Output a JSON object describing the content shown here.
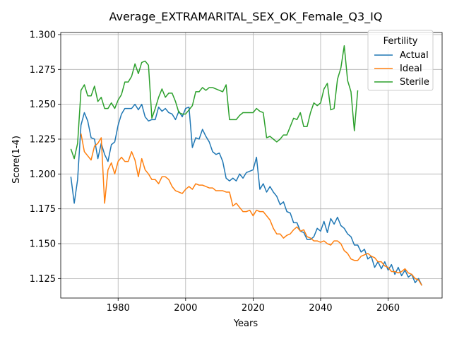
{
  "chart_data": {
    "type": "line",
    "title": "Average_EXTRAMARITAL_SEX_OK_Female_Q3_IQ",
    "xlabel": "Years",
    "ylabel": "Score(1-4)",
    "xlim": [
      1963,
      2076
    ],
    "ylim": [
      1.111,
      1.3015
    ],
    "xticks": [
      "1980",
      "2000",
      "2020",
      "2040",
      "2060"
    ],
    "yticks": [
      "1.125",
      "1.150",
      "1.175",
      "1.200",
      "1.225",
      "1.250",
      "1.275",
      "1.300"
    ],
    "grid": true,
    "legend": {
      "title": "Fertility",
      "position": "top-right"
    },
    "series": [
      {
        "name": "Actual",
        "color": "#1f77b4",
        "points": [
          [
            1966,
            1.198
          ],
          [
            1967,
            1.179
          ],
          [
            1968,
            1.196
          ],
          [
            1969,
            1.235
          ],
          [
            1970,
            1.244
          ],
          [
            1971,
            1.238
          ],
          [
            1972,
            1.226
          ],
          [
            1973,
            1.225
          ],
          [
            1974,
            1.211
          ],
          [
            1975,
            1.222
          ],
          [
            1976,
            1.214
          ],
          [
            1977,
            1.209
          ],
          [
            1978,
            1.221
          ],
          [
            1979,
            1.223
          ],
          [
            1980,
            1.235
          ],
          [
            1981,
            1.243
          ],
          [
            1982,
            1.247
          ],
          [
            1983,
            1.247
          ],
          [
            1984,
            1.247
          ],
          [
            1985,
            1.25
          ],
          [
            1986,
            1.246
          ],
          [
            1987,
            1.25
          ],
          [
            1988,
            1.241
          ],
          [
            1989,
            1.238
          ],
          [
            1990,
            1.239
          ],
          [
            1991,
            1.239
          ],
          [
            1992,
            1.248
          ],
          [
            1993,
            1.245
          ],
          [
            1994,
            1.247
          ],
          [
            1995,
            1.244
          ],
          [
            1996,
            1.243
          ],
          [
            1997,
            1.239
          ],
          [
            1998,
            1.245
          ],
          [
            1999,
            1.241
          ],
          [
            2000,
            1.247
          ],
          [
            2001,
            1.248
          ],
          [
            2002,
            1.219
          ],
          [
            2003,
            1.226
          ],
          [
            2004,
            1.225
          ],
          [
            2005,
            1.232
          ],
          [
            2006,
            1.227
          ],
          [
            2007,
            1.223
          ],
          [
            2008,
            1.216
          ],
          [
            2009,
            1.214
          ],
          [
            2010,
            1.215
          ],
          [
            2011,
            1.209
          ],
          [
            2012,
            1.197
          ],
          [
            2013,
            1.195
          ],
          [
            2014,
            1.197
          ],
          [
            2015,
            1.195
          ],
          [
            2016,
            1.2
          ],
          [
            2017,
            1.197
          ],
          [
            2018,
            1.201
          ],
          [
            2019,
            1.202
          ],
          [
            2020,
            1.203
          ],
          [
            2021,
            1.212
          ],
          [
            2022,
            1.189
          ],
          [
            2023,
            1.193
          ],
          [
            2024,
            1.187
          ],
          [
            2025,
            1.191
          ],
          [
            2026,
            1.187
          ],
          [
            2027,
            1.184
          ],
          [
            2028,
            1.178
          ],
          [
            2029,
            1.18
          ],
          [
            2030,
            1.173
          ],
          [
            2031,
            1.172
          ],
          [
            2032,
            1.165
          ],
          [
            2033,
            1.165
          ],
          [
            2034,
            1.159
          ],
          [
            2035,
            1.158
          ],
          [
            2036,
            1.153
          ],
          [
            2037,
            1.153
          ],
          [
            2038,
            1.155
          ],
          [
            2039,
            1.161
          ],
          [
            2040,
            1.159
          ],
          [
            2041,
            1.166
          ],
          [
            2042,
            1.158
          ],
          [
            2043,
            1.168
          ],
          [
            2044,
            1.164
          ],
          [
            2045,
            1.169
          ],
          [
            2046,
            1.163
          ],
          [
            2047,
            1.161
          ],
          [
            2048,
            1.157
          ],
          [
            2049,
            1.155
          ],
          [
            2050,
            1.149
          ],
          [
            2051,
            1.149
          ],
          [
            2052,
            1.144
          ],
          [
            2053,
            1.146
          ],
          [
            2054,
            1.139
          ],
          [
            2055,
            1.141
          ],
          [
            2056,
            1.133
          ],
          [
            2057,
            1.137
          ],
          [
            2058,
            1.132
          ],
          [
            2059,
            1.137
          ],
          [
            2060,
            1.131
          ],
          [
            2061,
            1.135
          ],
          [
            2062,
            1.128
          ],
          [
            2063,
            1.133
          ],
          [
            2064,
            1.127
          ],
          [
            2065,
            1.131
          ],
          [
            2066,
            1.126
          ],
          [
            2067,
            1.128
          ],
          [
            2068,
            1.122
          ],
          [
            2069,
            1.125
          ],
          [
            2070,
            1.12
          ]
        ]
      },
      {
        "name": "Ideal",
        "color": "#ff7f0e",
        "points": [
          [
            1969,
            1.229
          ],
          [
            1970,
            1.216
          ],
          [
            1971,
            1.213
          ],
          [
            1972,
            1.21
          ],
          [
            1973,
            1.22
          ],
          [
            1974,
            1.222
          ],
          [
            1975,
            1.226
          ],
          [
            1976,
            1.179
          ],
          [
            1977,
            1.203
          ],
          [
            1978,
            1.208
          ],
          [
            1979,
            1.2
          ],
          [
            1980,
            1.209
          ],
          [
            1981,
            1.212
          ],
          [
            1982,
            1.209
          ],
          [
            1983,
            1.209
          ],
          [
            1984,
            1.216
          ],
          [
            1985,
            1.21
          ],
          [
            1986,
            1.198
          ],
          [
            1987,
            1.211
          ],
          [
            1988,
            1.203
          ],
          [
            1989,
            1.2
          ],
          [
            1990,
            1.196
          ],
          [
            1991,
            1.196
          ],
          [
            1992,
            1.193
          ],
          [
            1993,
            1.198
          ],
          [
            1994,
            1.198
          ],
          [
            1995,
            1.196
          ],
          [
            1996,
            1.191
          ],
          [
            1997,
            1.188
          ],
          [
            1998,
            1.187
          ],
          [
            1999,
            1.186
          ],
          [
            2000,
            1.189
          ],
          [
            2001,
            1.191
          ],
          [
            2002,
            1.189
          ],
          [
            2003,
            1.193
          ],
          [
            2004,
            1.192
          ],
          [
            2005,
            1.192
          ],
          [
            2006,
            1.191
          ],
          [
            2007,
            1.19
          ],
          [
            2008,
            1.19
          ],
          [
            2009,
            1.188
          ],
          [
            2010,
            1.188
          ],
          [
            2011,
            1.188
          ],
          [
            2012,
            1.187
          ],
          [
            2013,
            1.187
          ],
          [
            2014,
            1.177
          ],
          [
            2015,
            1.179
          ],
          [
            2016,
            1.176
          ],
          [
            2017,
            1.173
          ],
          [
            2018,
            1.173
          ],
          [
            2019,
            1.174
          ],
          [
            2020,
            1.17
          ],
          [
            2021,
            1.174
          ],
          [
            2022,
            1.173
          ],
          [
            2023,
            1.173
          ],
          [
            2024,
            1.17
          ],
          [
            2025,
            1.167
          ],
          [
            2026,
            1.161
          ],
          [
            2027,
            1.157
          ],
          [
            2028,
            1.157
          ],
          [
            2029,
            1.154
          ],
          [
            2030,
            1.156
          ],
          [
            2031,
            1.157
          ],
          [
            2032,
            1.16
          ],
          [
            2033,
            1.162
          ],
          [
            2034,
            1.159
          ],
          [
            2035,
            1.16
          ],
          [
            2036,
            1.155
          ],
          [
            2037,
            1.154
          ],
          [
            2038,
            1.152
          ],
          [
            2039,
            1.152
          ],
          [
            2040,
            1.151
          ],
          [
            2041,
            1.152
          ],
          [
            2042,
            1.15
          ],
          [
            2043,
            1.149
          ],
          [
            2044,
            1.152
          ],
          [
            2045,
            1.152
          ],
          [
            2046,
            1.15
          ],
          [
            2047,
            1.145
          ],
          [
            2048,
            1.143
          ],
          [
            2049,
            1.139
          ],
          [
            2050,
            1.138
          ],
          [
            2051,
            1.138
          ],
          [
            2052,
            1.141
          ],
          [
            2053,
            1.142
          ],
          [
            2054,
            1.143
          ],
          [
            2055,
            1.141
          ],
          [
            2056,
            1.14
          ],
          [
            2057,
            1.137
          ],
          [
            2058,
            1.137
          ],
          [
            2059,
            1.134
          ],
          [
            2060,
            1.133
          ],
          [
            2061,
            1.13
          ],
          [
            2062,
            1.13
          ],
          [
            2063,
            1.129
          ],
          [
            2064,
            1.13
          ],
          [
            2065,
            1.132
          ],
          [
            2066,
            1.129
          ],
          [
            2067,
            1.128
          ],
          [
            2068,
            1.125
          ],
          [
            2069,
            1.124
          ],
          [
            2070,
            1.12
          ]
        ]
      },
      {
        "name": "Sterile",
        "color": "#2ca02c",
        "points": [
          [
            1966,
            1.218
          ],
          [
            1967,
            1.211
          ],
          [
            1968,
            1.222
          ],
          [
            1969,
            1.26
          ],
          [
            1970,
            1.264
          ],
          [
            1971,
            1.256
          ],
          [
            1972,
            1.256
          ],
          [
            1973,
            1.263
          ],
          [
            1974,
            1.252
          ],
          [
            1975,
            1.255
          ],
          [
            1976,
            1.247
          ],
          [
            1977,
            1.247
          ],
          [
            1978,
            1.251
          ],
          [
            1979,
            1.247
          ],
          [
            1980,
            1.253
          ],
          [
            1981,
            1.257
          ],
          [
            1982,
            1.266
          ],
          [
            1983,
            1.266
          ],
          [
            1984,
            1.27
          ],
          [
            1985,
            1.279
          ],
          [
            1986,
            1.272
          ],
          [
            1987,
            1.28
          ],
          [
            1988,
            1.281
          ],
          [
            1989,
            1.278
          ],
          [
            1990,
            1.24
          ],
          [
            1991,
            1.247
          ],
          [
            1992,
            1.255
          ],
          [
            1993,
            1.261
          ],
          [
            1994,
            1.255
          ],
          [
            1995,
            1.258
          ],
          [
            1996,
            1.258
          ],
          [
            1997,
            1.252
          ],
          [
            1998,
            1.244
          ],
          [
            1999,
            1.243
          ],
          [
            2000,
            1.243
          ],
          [
            2001,
            1.246
          ],
          [
            2002,
            1.249
          ],
          [
            2003,
            1.259
          ],
          [
            2004,
            1.259
          ],
          [
            2005,
            1.262
          ],
          [
            2006,
            1.26
          ],
          [
            2007,
            1.262
          ],
          [
            2008,
            1.262
          ],
          [
            2009,
            1.261
          ],
          [
            2010,
            1.26
          ],
          [
            2011,
            1.259
          ],
          [
            2012,
            1.264
          ],
          [
            2013,
            1.239
          ],
          [
            2014,
            1.239
          ],
          [
            2015,
            1.239
          ],
          [
            2016,
            1.242
          ],
          [
            2017,
            1.244
          ],
          [
            2018,
            1.244
          ],
          [
            2019,
            1.244
          ],
          [
            2020,
            1.244
          ],
          [
            2021,
            1.247
          ],
          [
            2022,
            1.245
          ],
          [
            2023,
            1.244
          ],
          [
            2024,
            1.226
          ],
          [
            2025,
            1.227
          ],
          [
            2026,
            1.225
          ],
          [
            2027,
            1.223
          ],
          [
            2028,
            1.225
          ],
          [
            2029,
            1.228
          ],
          [
            2030,
            1.228
          ],
          [
            2031,
            1.234
          ],
          [
            2032,
            1.24
          ],
          [
            2033,
            1.239
          ],
          [
            2034,
            1.244
          ],
          [
            2035,
            1.234
          ],
          [
            2036,
            1.234
          ],
          [
            2037,
            1.244
          ],
          [
            2038,
            1.251
          ],
          [
            2039,
            1.249
          ],
          [
            2040,
            1.251
          ],
          [
            2041,
            1.261
          ],
          [
            2042,
            1.265
          ],
          [
            2043,
            1.246
          ],
          [
            2044,
            1.247
          ],
          [
            2045,
            1.268
          ],
          [
            2046,
            1.276
          ],
          [
            2047,
            1.292
          ],
          [
            2048,
            1.267
          ],
          [
            2049,
            1.259
          ],
          [
            2050,
            1.231
          ],
          [
            2051,
            1.26
          ]
        ]
      }
    ]
  }
}
